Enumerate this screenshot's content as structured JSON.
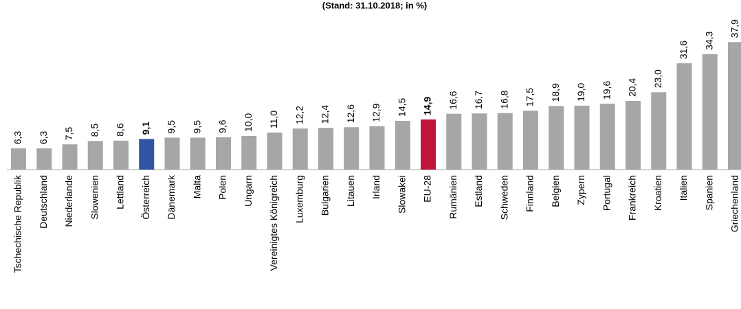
{
  "chart_data": {
    "type": "bar",
    "subtitle": "(Stand: 31.10.2018; in %)",
    "categories": [
      "Tschechische Republik",
      "Deutschland",
      "Niederlande",
      "Slowenien",
      "Lettland",
      "Österreich",
      "Dänemark",
      "Malta",
      "Polen",
      "Ungarn",
      "Vereinigtes Königreich",
      "Luxemburg",
      "Bulgarien",
      "Litauen",
      "Irland",
      "Slowakei",
      "EU-28",
      "Rumänien",
      "Estland",
      "Schweden",
      "Finnland",
      "Belgien",
      "Zypern",
      "Portugal",
      "Frankreich",
      "Kroatien",
      "Italien",
      "Spanien",
      "Griechenland"
    ],
    "values": [
      6.3,
      6.3,
      7.5,
      8.5,
      8.6,
      9.1,
      9.5,
      9.5,
      9.6,
      10.0,
      11.0,
      12.2,
      12.4,
      12.6,
      12.9,
      14.5,
      14.9,
      16.6,
      16.7,
      16.8,
      17.5,
      18.9,
      19.0,
      19.6,
      20.4,
      23.0,
      31.6,
      34.3,
      37.9
    ],
    "value_labels": [
      "6,3",
      "6,3",
      "7,5",
      "8,5",
      "8,6",
      "9,1",
      "9,5",
      "9,5",
      "9,6",
      "10,0",
      "11,0",
      "12,2",
      "12,4",
      "12,6",
      "12,9",
      "14,5",
      "14,9",
      "16,6",
      "16,7",
      "16,8",
      "17,5",
      "18,9",
      "19,0",
      "19,6",
      "20,4",
      "23,0",
      "31,6",
      "34,3",
      "37,9"
    ],
    "color": "#a6a6a6",
    "colors": [
      "#a6a6a6",
      "#a6a6a6",
      "#a6a6a6",
      "#a6a6a6",
      "#a6a6a6",
      "#2f55a4",
      "#a6a6a6",
      "#a6a6a6",
      "#a6a6a6",
      "#a6a6a6",
      "#a6a6a6",
      "#a6a6a6",
      "#a6a6a6",
      "#a6a6a6",
      "#a6a6a6",
      "#a6a6a6",
      "#c0143c",
      "#a6a6a6",
      "#a6a6a6",
      "#a6a6a6",
      "#a6a6a6",
      "#a6a6a6",
      "#a6a6a6",
      "#a6a6a6",
      "#a6a6a6",
      "#a6a6a6",
      "#a6a6a6",
      "#a6a6a6",
      "#a6a6a6"
    ],
    "ylim": [
      0,
      50
    ]
  }
}
